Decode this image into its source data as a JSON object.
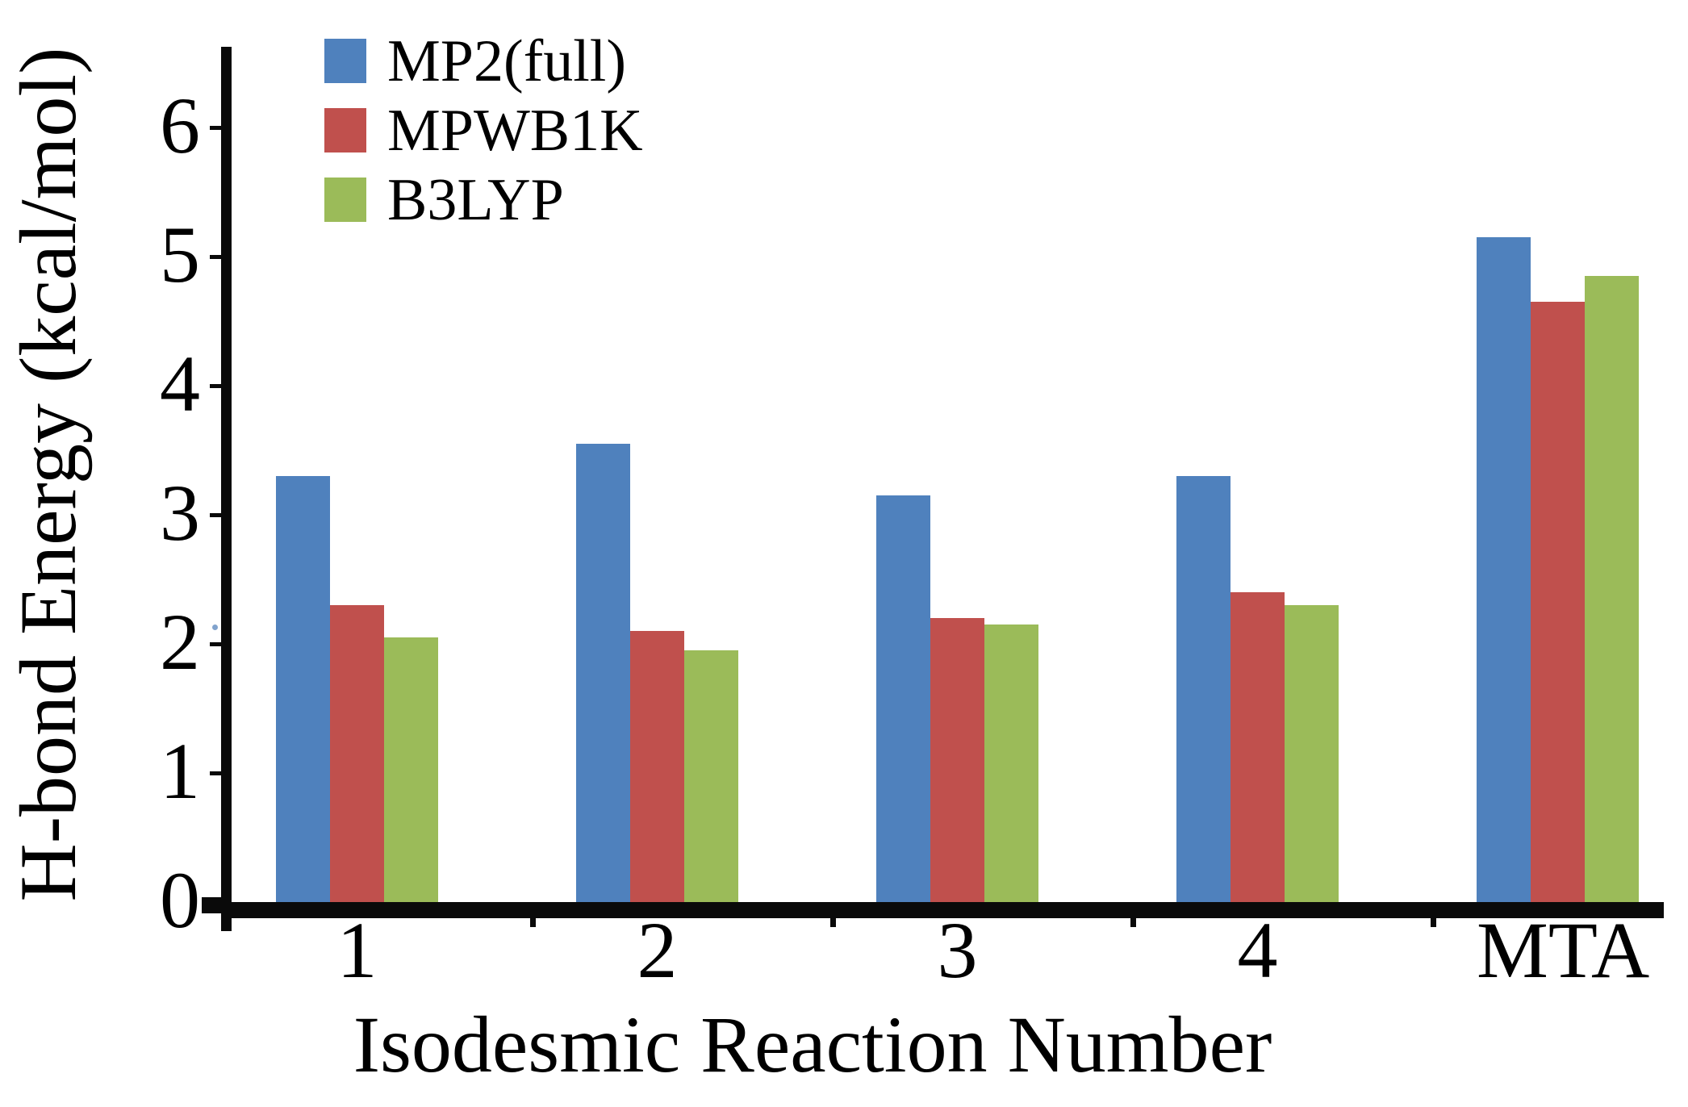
{
  "figure": {
    "background": "#ffffff",
    "axis_color": "#0a0a0a"
  },
  "chart_data": {
    "type": "bar",
    "title": "",
    "xlabel": "Isodesmic Reaction Number",
    "ylabel": "H-bond Energy (kcal/mol)",
    "categories": [
      "1",
      "2",
      "3",
      "4",
      "MTA"
    ],
    "series": [
      {
        "name": "MP2(full)",
        "color": "#4f81bd",
        "values": [
          3.3,
          3.55,
          3.15,
          3.3,
          5.15
        ]
      },
      {
        "name": "MPWB1K",
        "color": "#c0504d",
        "values": [
          2.3,
          2.1,
          2.2,
          2.4,
          4.65
        ]
      },
      {
        "name": "B3LYP",
        "color": "#9bbb59",
        "values": [
          2.05,
          1.95,
          2.15,
          2.3,
          4.85
        ]
      }
    ],
    "units": "kcal/mol",
    "ylim": [
      0,
      6.625
    ],
    "yticks": [
      0,
      1,
      2,
      3,
      4,
      5,
      6
    ],
    "legend_position": "top-left",
    "grid": false
  }
}
